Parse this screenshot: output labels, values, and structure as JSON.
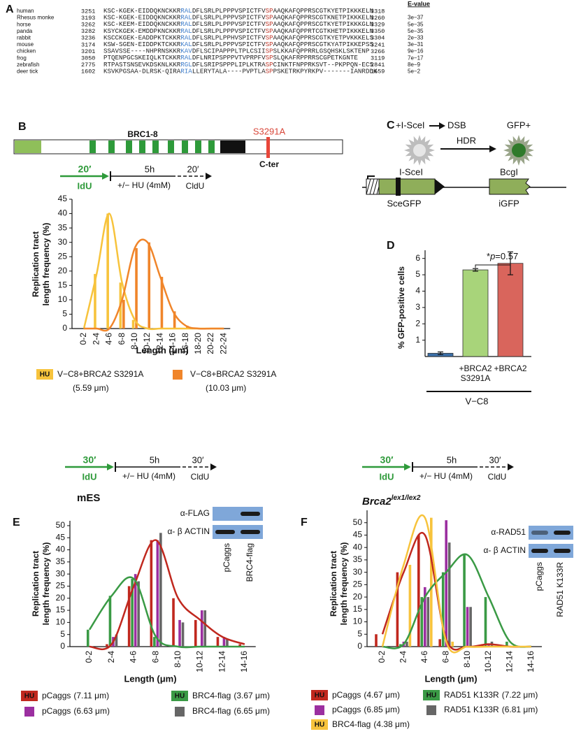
{
  "panel_a": {
    "letter": "A",
    "evalue_header": "E-value",
    "rows": [
      {
        "species": "human",
        "start": "3251",
        "segments": [
          "KSC-KGEK-EIDDQKNCKKR",
          "RAL",
          "DFLSRLPLPPPVSPICTFV",
          "SP",
          "AAQKAFQPPRSCGTKYETPIKKKELN"
        ],
        "end": "3318"
      },
      {
        "species": "Rhesus monke",
        "start": "3193",
        "segments": [
          "KSC-KGEK-EIDDQKNCKKR",
          "RAL",
          "DFLSRLPLPPPVSPICTFV",
          "SP",
          "AAQKAFQPPRSCGTKNETPIKKKELN"
        ],
        "end": "3260",
        "evalue": "3e−37"
      },
      {
        "species": "horse",
        "start": "3262",
        "segments": [
          "KSC-KEEM-EIDDQKNCKKR",
          "RAL",
          "DFLSRLPLPPPVSPICTFV",
          "SP",
          "AAQKAFQPPRSCGTKYETPIKKKGLN"
        ],
        "end": "3329",
        "evalue": "5e−35"
      },
      {
        "species": "panda",
        "start": "3282",
        "segments": [
          "KSYCKGEK-EMDDPKNCKKR",
          "RAL",
          "DFLSRLPLPPPVSPICTFV",
          "SP",
          "AAQKAFQPPRTCGTKHETPIKKKELN"
        ],
        "end": "3350",
        "evalue": "5e−35"
      },
      {
        "species": "rabbit",
        "start": "3236",
        "segments": [
          "KSCCKGEK-EADDPKTCKKR",
          "RAL",
          "DFLSRLPLPPHVSPICTFV",
          "SP",
          "AAQKAFQPPRSCGTKYETPVKKKELS"
        ],
        "end": "3304",
        "evalue": "2e−33"
      },
      {
        "species": "mouse",
        "start": "3174",
        "segments": [
          "KSW-SGEN-EIDDPKTCKKR",
          "KAL",
          "DFLSRLPLPPPVSPICTFV",
          "SP",
          "AAQKAFQPPRSCGTKYATPIKKEPSS"
        ],
        "end": "3241",
        "evalue": "3e−31"
      },
      {
        "species": "chicken",
        "start": "3201",
        "segments": [
          "SSAVSSE----NHPRNSKKR",
          "KAV",
          "DFLSCIPAPPPLTPLCSII",
          "SP",
          "SLKKAFQPPRRLGSQHSKLSKTENP"
        ],
        "end": "3266",
        "evalue": "9e−16"
      },
      {
        "species": "frog",
        "start": "3050",
        "segments": [
          "PTQENPGCSKEIQLKTCKKR",
          "RAL",
          "DFLNRIPSPPPVTVPRPFV",
          "SP",
          "SLQKAFRPPRRSCGPETKGNTE"
        ],
        "end": "3119",
        "evalue": "7e−17"
      },
      {
        "species": "zebrafish",
        "start": "2775",
        "segments": [
          "RTPASTSNSEVKDSKNLKKR",
          "RGL",
          "DFLSRIPSPPPLIPLKTRA",
          "SP",
          "CINKTFNPPRKSVT--PKPPQN-ECS"
        ],
        "end": "2841",
        "evalue": "8e−9"
      },
      {
        "species": "deer tick",
        "start": "1602",
        "segments": [
          "KSVKPGSAA-DLRSK-QIRA",
          "RIA",
          "LLERYTALA----PVPTLA",
          "SP",
          "PSKETRKPYRKPV-------IANRDDK"
        ],
        "end": "1659",
        "evalue": "5e−2"
      }
    ]
  },
  "panel_b": {
    "letter": "B",
    "domain_label": "BRC1-8",
    "mutation": "S3291A",
    "cter": "C-ter",
    "timeline": {
      "pulse1": "20′",
      "label1": "IdU",
      "chase": "5h",
      "treatment": "+/− HU (4mM)",
      "pulse2": "20′",
      "label2": "CldU"
    }
  },
  "panel_c": {
    "letter": "C",
    "enzyme": "+I-SceI",
    "break": "DSB",
    "outcome": "GFP+",
    "repair": "HDR",
    "site": "I-SceI",
    "reporter": "SceGFP",
    "donor_site": "BcgI",
    "donor": "iGFP"
  },
  "panel_d": {
    "letter": "D"
  },
  "panel_e": {
    "letter": "E",
    "title": "mES",
    "timeline": {
      "pulse1": "30′",
      "label1": "IdU",
      "chase": "5h",
      "treatment": "+/− HU (4mM)",
      "pulse2": "30′",
      "label2": "CldU"
    },
    "blot": {
      "labels": [
        "α-FLAG",
        "α- β ACTIN"
      ],
      "lanes": [
        "pCaggs",
        "BRC4-flag"
      ]
    }
  },
  "panel_f": {
    "letter": "F",
    "title": "Brca2",
    "title_sup": "lex1/lex2",
    "timeline": {
      "pulse1": "30′",
      "label1": "IdU",
      "chase": "5h",
      "treatment": "+/− HU (4mM)",
      "pulse2": "30′",
      "label2": "CldU"
    },
    "blot": {
      "labels": [
        "α-RAD51",
        "α- β ACTIN"
      ],
      "lanes": [
        "pCaggs",
        "RAD51 K133R"
      ]
    }
  },
  "chart_data": [
    {
      "type": "bar",
      "ylabel": [
        "Replication tract",
        "length frequency (%)"
      ],
      "xlabel": "Length (μm)",
      "categories": [
        "0-2",
        "2-4",
        "4-6",
        "6-8",
        "8-10",
        "10-12",
        "12-14",
        "14-16",
        "16-18",
        "18-20",
        "20-22",
        "22-24"
      ],
      "ylim": [
        0,
        45
      ],
      "yticks": [
        0,
        5,
        10,
        15,
        20,
        25,
        30,
        35,
        40,
        45
      ],
      "series": [
        {
          "name": "V−C8+BRCA2 S3291A",
          "badge": "HU",
          "mean": "(5.59 μm)",
          "color": "#f7c33c",
          "fit": true,
          "values": [
            0,
            19,
            40,
            16,
            3,
            0,
            0,
            0,
            0,
            0,
            0,
            0
          ]
        },
        {
          "name": "V−C8+BRCA2 S3291A",
          "mean": "(10.03 μm)",
          "color": "#f0852a",
          "fit": true,
          "values": [
            0,
            0,
            0,
            10,
            28,
            30,
            18,
            6,
            1,
            0,
            0,
            0
          ]
        }
      ]
    },
    {
      "type": "bar",
      "ylabel": [
        "% GFP-positive cells"
      ],
      "categories": [
        null,
        "+BRCA2 S3291A",
        "+BRCA2"
      ],
      "values": [
        0.2,
        5.3,
        5.7
      ],
      "errors": [
        0.08,
        0.08,
        0.7
      ],
      "colors": [
        "#3b6fa8",
        "#a8d47a",
        "#d9655c"
      ],
      "ylim": [
        0,
        6.5
      ],
      "yticks": [
        1,
        2,
        3,
        4,
        5,
        6
      ],
      "group_label": "V−C8",
      "annotation": [
        "*",
        "p",
        "=0.57"
      ]
    },
    {
      "type": "bar",
      "ylabel": [
        "Replication tract",
        "length frequency (%)"
      ],
      "xlabel": "Length (μm)",
      "categories": [
        "0-2",
        "2-4",
        "4-6",
        "6-8",
        "8-10",
        "10-12",
        "12-14",
        "14-16"
      ],
      "ylim": [
        0,
        52
      ],
      "yticks": [
        0,
        5,
        10,
        15,
        20,
        25,
        30,
        35,
        40,
        45,
        50
      ],
      "series": [
        {
          "name": "pCaggs",
          "badge": "HU",
          "mean": "(7.11 μm)",
          "color": "#c0281e",
          "fit": true,
          "values": [
            0,
            1,
            25,
            44,
            20,
            11,
            4,
            1
          ]
        },
        {
          "name": "BRC4-flag",
          "badge": "HU",
          "mean": "(3.67 μm)",
          "color": "#3a9a45",
          "fit": true,
          "values": [
            7,
            21,
            28,
            4,
            0,
            0,
            0,
            0
          ]
        },
        {
          "name": "pCaggs",
          "mean": "(6.63 μm)",
          "color": "#9b2fa0",
          "values": [
            0,
            4,
            30,
            44,
            11,
            15,
            4,
            0
          ]
        },
        {
          "name": "BRC4-flag",
          "mean": "(6.65 μm)",
          "color": "#666666",
          "values": [
            0,
            5,
            27,
            47,
            10,
            15,
            3,
            0
          ]
        }
      ]
    },
    {
      "type": "bar",
      "ylabel": [
        "Replication tract",
        "length frequency (%)"
      ],
      "xlabel": "Length (μm)",
      "categories": [
        "0-2",
        "2-4",
        "4-6",
        "6-8",
        "8-10",
        "10-12",
        "12-14",
        "14-16"
      ],
      "ylim": [
        0,
        55
      ],
      "yticks": [
        0,
        5,
        10,
        15,
        20,
        25,
        30,
        35,
        40,
        45,
        50
      ],
      "series": [
        {
          "name": "pCaggs",
          "badge": "HU",
          "mean": "(4.67 μm)",
          "color": "#c0281e",
          "fit": true,
          "values": [
            5,
            30,
            45,
            3,
            0,
            1,
            0,
            0
          ]
        },
        {
          "name": "RAD51 K133R",
          "badge": "HU",
          "mean": "(7.22 μm)",
          "color": "#3a9a45",
          "fit": true,
          "values": [
            0,
            1,
            20,
            30,
            37,
            20,
            2,
            0
          ]
        },
        {
          "name": "pCaggs",
          "mean": "(6.85 μm)",
          "color": "#9b2fa0",
          "values": [
            0,
            2,
            24,
            51,
            16,
            1,
            0,
            0
          ]
        },
        {
          "name": "RAD51 K133R",
          "mean": "(6.81 μm)",
          "color": "#666666",
          "values": [
            0,
            2,
            20,
            42,
            16,
            2,
            0,
            0
          ]
        },
        {
          "name": "BRC4-flag",
          "badge": "HU",
          "mean": "(4.38 μm)",
          "color": "#f7c33c",
          "fit": true,
          "values": [
            0,
            33,
            52,
            2,
            0,
            0,
            0,
            0
          ]
        }
      ]
    }
  ]
}
